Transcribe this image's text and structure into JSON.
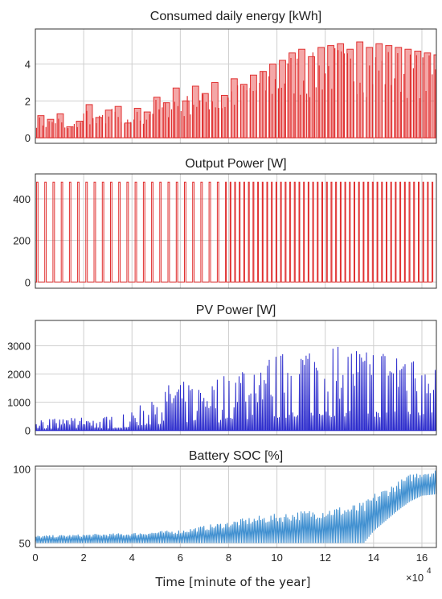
{
  "figure": {
    "xlabel": "Time [minute of the year]",
    "x_exponent_base": "×10",
    "x_exponent_power": "4"
  },
  "chart_data": [
    {
      "type": "bar",
      "title": "Consumed daily energy [kWh]",
      "color": "#e03030",
      "fill": "#f4a7a7",
      "xlim": [
        0,
        16.6
      ],
      "ylim": [
        -0.3,
        5.9
      ],
      "yticks": [
        0,
        2,
        4
      ],
      "xticks": [
        0,
        2,
        4,
        6,
        8,
        10,
        12,
        14,
        16
      ],
      "x_unit": "×10^4 minutes",
      "series": [
        {
          "x": [
            0.1,
            0.5,
            0.9,
            1.3,
            1.7,
            2.1,
            2.5,
            2.9,
            3.3,
            3.7,
            4.1,
            4.5,
            4.9,
            5.3,
            5.7,
            6.1,
            6.5,
            6.9,
            7.3,
            7.7,
            8.1,
            8.5,
            8.9,
            9.3,
            9.7,
            10.1,
            10.5,
            10.9,
            11.3,
            11.7,
            12.1,
            12.5,
            12.9,
            13.3,
            13.7,
            14.1,
            14.5,
            14.9,
            15.3,
            15.7,
            16.1,
            16.5
          ],
          "values": [
            1.2,
            1.0,
            1.3,
            0.6,
            0.9,
            1.8,
            1.1,
            1.5,
            1.7,
            0.8,
            1.6,
            1.4,
            2.2,
            1.9,
            2.7,
            2.0,
            2.8,
            2.4,
            3.0,
            2.3,
            3.2,
            2.9,
            3.4,
            3.6,
            4.0,
            4.2,
            4.6,
            4.8,
            4.4,
            4.9,
            5.0,
            5.1,
            4.8,
            5.2,
            4.9,
            5.1,
            5.0,
            4.9,
            4.8,
            4.7,
            4.6,
            4.5
          ]
        }
      ]
    },
    {
      "type": "line",
      "title": "Output Power [W]",
      "color": "#e03030",
      "xlim": [
        0,
        16.6
      ],
      "ylim": [
        -30,
        520
      ],
      "yticks": [
        0,
        200,
        400
      ],
      "xticks": [
        0,
        2,
        4,
        6,
        8,
        10,
        12,
        14,
        16
      ],
      "series": [
        {
          "pulse_level": 480,
          "pulse_period": [
            0.34,
            0.19
          ],
          "pulse_switch_x": 7.8,
          "base": 0
        }
      ]
    },
    {
      "type": "line",
      "title": "PV Power [W]",
      "color": "#2a2acc",
      "xlim": [
        0,
        16.6
      ],
      "ylim": [
        -150,
        3900
      ],
      "yticks": [
        0,
        1000,
        2000,
        3000
      ],
      "xticks": [
        0,
        2,
        4,
        6,
        8,
        10,
        12,
        14,
        16
      ],
      "series": [
        {
          "x": [
            0,
            1,
            2,
            3,
            4,
            5,
            6,
            7,
            8,
            9,
            10,
            11,
            12,
            13,
            14,
            15,
            16,
            16.6
          ],
          "envelope": [
            450,
            420,
            480,
            500,
            650,
            1500,
            1800,
            1600,
            2200,
            2600,
            2700,
            3100,
            3200,
            3100,
            3000,
            3000,
            3300,
            2900
          ]
        }
      ]
    },
    {
      "type": "line",
      "title": "Battery SOC [%]",
      "color": "#3f8fd0",
      "xlim": [
        0,
        16.6
      ],
      "ylim": [
        47,
        102
      ],
      "yticks": [
        50,
        100
      ],
      "xticks": [
        0,
        2,
        4,
        6,
        8,
        10,
        12,
        14,
        16
      ],
      "series": [
        {
          "x": [
            0,
            2,
            4,
            6,
            7,
            8,
            9,
            10,
            11,
            12,
            13,
            13.6,
            14,
            15,
            15.5,
            16,
            16.6
          ],
          "low": [
            50,
            50,
            50,
            50,
            50,
            50,
            50,
            50,
            50,
            50,
            50,
            50,
            58,
            72,
            78,
            82,
            83
          ],
          "high": [
            55,
            56,
            57,
            59,
            62,
            65,
            68,
            70,
            72,
            74,
            76,
            78,
            84,
            92,
            97,
            100,
            100
          ]
        }
      ]
    }
  ]
}
